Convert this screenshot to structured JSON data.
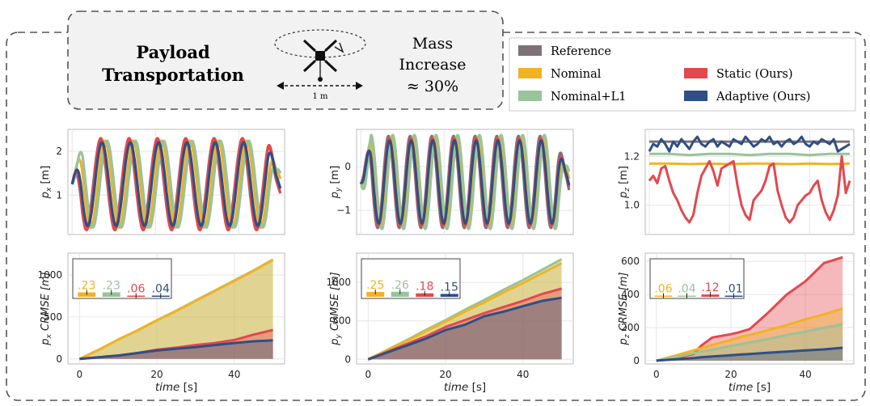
{
  "header": {
    "task_line1": "Payload",
    "task_line2": "Transportation",
    "distance_label": "1 m",
    "mass_line1": "Mass",
    "mass_line2": "Increase",
    "mass_line3": "≈ 30%"
  },
  "legend": [
    {
      "name": "Reference",
      "color": "#7d7177"
    },
    {
      "name": "Nominal",
      "color": "#f0b323"
    },
    {
      "name": "Nominal+L1",
      "color": "#99c39a"
    },
    {
      "name": "Static (Ours)",
      "color": "#e5474f"
    },
    {
      "name": "Adaptive (Ours)",
      "color": "#2f4f86"
    }
  ],
  "colors": {
    "reference": "#7d7177",
    "nominal": "#f0b323",
    "nominal_l1": "#99c39a",
    "static": "#e5474f",
    "adaptive": "#2f4f86"
  },
  "chart_data": [
    {
      "id": "px",
      "type": "line",
      "ylabel_main": "p",
      "ylabel_sub": "x",
      "ylabel_unit": "[m]",
      "xlim": [
        -1,
        51
      ],
      "ylim": [
        0.1,
        2.5
      ],
      "yticks": [
        1,
        2
      ],
      "ytick_labels": [
        "1",
        "2"
      ],
      "signal": {
        "kind": "sine",
        "center": 1.25,
        "amplitude": 0.97,
        "period": 6.8,
        "phase": 1.6,
        "t_end": 50,
        "series": [
          {
            "name": "Reference",
            "key": "reference",
            "amp_scale": 1.0,
            "lag": 0.0
          },
          {
            "name": "Nominal",
            "key": "nominal",
            "amp_scale": 1.02,
            "lag": 1.1
          },
          {
            "name": "Nominal+L1",
            "key": "nominal_l1",
            "amp_scale": 1.02,
            "lag": 1.6
          },
          {
            "name": "Static (Ours)",
            "key": "static",
            "amp_scale": 1.08,
            "lag": 0.1
          },
          {
            "name": "Adaptive (Ours)",
            "key": "adaptive",
            "amp_scale": 0.98,
            "lag": 0.4
          }
        ]
      }
    },
    {
      "id": "py",
      "type": "line",
      "ylabel_main": "p",
      "ylabel_sub": "y",
      "ylabel_unit": "[m]",
      "xlim": [
        -1,
        51
      ],
      "ylim": [
        -1.55,
        0.85
      ],
      "yticks": [
        -1,
        0
      ],
      "ytick_labels": [
        "−1",
        "0"
      ],
      "signal": {
        "kind": "sine",
        "center": -0.35,
        "amplitude": 1.05,
        "period": 5.2,
        "phase": -0.2,
        "t_end": 50,
        "series": [
          {
            "name": "Reference",
            "key": "reference",
            "amp_scale": 1.0,
            "lag": 0.0
          },
          {
            "name": "Nominal",
            "key": "nominal",
            "amp_scale": 0.98,
            "lag": 0.6
          },
          {
            "name": "Nominal+L1",
            "key": "nominal_l1",
            "amp_scale": 1.02,
            "lag": 1.0
          },
          {
            "name": "Static (Ours)",
            "key": "static",
            "amp_scale": 0.95,
            "lag": 0.15
          },
          {
            "name": "Adaptive (Ours)",
            "key": "adaptive",
            "amp_scale": 0.9,
            "lag": 0.25
          }
        ]
      }
    },
    {
      "id": "pz",
      "type": "line",
      "ylabel_main": "p",
      "ylabel_sub": "z",
      "ylabel_unit": "[m]",
      "xlim": [
        -1,
        51
      ],
      "ylim": [
        0.88,
        1.31
      ],
      "yticks": [
        1.0,
        1.2
      ],
      "ytick_labels": [
        "1.0",
        "1.2"
      ],
      "series": [
        {
          "name": "Reference",
          "key": "reference",
          "x": [
            0,
            50
          ],
          "y": [
            1.26,
            1.26
          ]
        },
        {
          "name": "Nominal",
          "key": "nominal",
          "x": [
            0,
            5,
            10,
            15,
            20,
            25,
            30,
            35,
            40,
            45,
            50
          ],
          "y": [
            1.17,
            1.17,
            1.168,
            1.17,
            1.168,
            1.17,
            1.17,
            1.168,
            1.17,
            1.168,
            1.17
          ]
        },
        {
          "name": "Nominal+L1",
          "key": "nominal_l1",
          "x": [
            0,
            5,
            10,
            15,
            20,
            25,
            30,
            35,
            40,
            45,
            50
          ],
          "y": [
            1.21,
            1.21,
            1.205,
            1.21,
            1.21,
            1.205,
            1.21,
            1.21,
            1.205,
            1.21,
            1.21
          ]
        },
        {
          "name": "Static (Ours)",
          "key": "static",
          "x": [
            0,
            1,
            2,
            3,
            4,
            5,
            6,
            7,
            8,
            9,
            10,
            11,
            12,
            13,
            14,
            15,
            16,
            17,
            18,
            19,
            20,
            21,
            22,
            23,
            24,
            25,
            26,
            27,
            28,
            29,
            30,
            31,
            32,
            33,
            34,
            35,
            36,
            37,
            38,
            39,
            40,
            41,
            42,
            43,
            44,
            45,
            46,
            47,
            48,
            49,
            50
          ],
          "y": [
            1.1,
            1.12,
            1.09,
            1.15,
            1.16,
            1.1,
            1.05,
            1.02,
            0.98,
            0.95,
            0.93,
            0.96,
            1.05,
            1.12,
            1.15,
            1.18,
            1.14,
            1.08,
            1.15,
            1.16,
            1.17,
            1.18,
            1.08,
            1.0,
            0.96,
            0.94,
            1.02,
            1.04,
            1.06,
            1.1,
            1.16,
            1.17,
            1.06,
            1.0,
            0.95,
            0.93,
            0.95,
            1.0,
            1.02,
            1.04,
            1.05,
            1.08,
            1.1,
            1.02,
            0.97,
            0.94,
            0.98,
            1.04,
            1.2,
            1.05,
            1.1
          ]
        },
        {
          "name": "Adaptive (Ours)",
          "key": "adaptive",
          "x": [
            0,
            1,
            2,
            3,
            4,
            5,
            6,
            7,
            8,
            9,
            10,
            11,
            12,
            13,
            14,
            15,
            16,
            17,
            18,
            19,
            20,
            21,
            22,
            23,
            24,
            25,
            26,
            27,
            28,
            29,
            30,
            31,
            32,
            33,
            34,
            35,
            36,
            37,
            38,
            39,
            40,
            41,
            42,
            43,
            44,
            45,
            46,
            47,
            48,
            49,
            50
          ],
          "y": [
            1.22,
            1.25,
            1.24,
            1.27,
            1.25,
            1.22,
            1.26,
            1.24,
            1.27,
            1.25,
            1.23,
            1.26,
            1.28,
            1.25,
            1.24,
            1.26,
            1.27,
            1.24,
            1.26,
            1.25,
            1.24,
            1.27,
            1.26,
            1.25,
            1.28,
            1.26,
            1.24,
            1.25,
            1.27,
            1.26,
            1.28,
            1.25,
            1.26,
            1.24,
            1.26,
            1.27,
            1.25,
            1.26,
            1.28,
            1.25,
            1.24,
            1.26,
            1.25,
            1.27,
            1.26,
            1.25,
            1.27,
            1.22,
            1.23,
            1.24,
            1.25
          ]
        }
      ]
    },
    {
      "id": "px_crmse",
      "type": "area",
      "ylabel_main": "p",
      "ylabel_sub": "x",
      "ylabel_unit": "CRMSE [m]",
      "xlabel": "time",
      "xlabel_unit": "[s]",
      "xlim": [
        -3,
        53
      ],
      "ylim": [
        -60,
        1260
      ],
      "xticks": [
        0,
        20,
        40
      ],
      "xtick_labels": [
        "0",
        "20",
        "40"
      ],
      "yticks": [
        0,
        500,
        1000
      ],
      "ytick_labels": [
        "0",
        "500",
        "1000"
      ],
      "x": [
        0,
        5,
        10,
        15,
        20,
        25,
        30,
        35,
        40,
        45,
        50
      ],
      "series": [
        {
          "name": "Reference",
          "key": "reference",
          "y": [
            0,
            0,
            0,
            0,
            0,
            0,
            0,
            0,
            0,
            0,
            0
          ]
        },
        {
          "name": "Nominal",
          "key": "nominal",
          "y": [
            0,
            110,
            230,
            340,
            460,
            570,
            690,
            810,
            930,
            1050,
            1180
          ]
        },
        {
          "name": "Nominal+L1",
          "key": "nominal_l1",
          "y": [
            0,
            110,
            230,
            340,
            460,
            575,
            695,
            815,
            935,
            1055,
            1185
          ]
        },
        {
          "name": "Static (Ours)",
          "key": "static",
          "y": [
            0,
            20,
            40,
            70,
            110,
            135,
            165,
            190,
            225,
            290,
            345
          ]
        },
        {
          "name": "Adaptive (Ours)",
          "key": "adaptive",
          "y": [
            0,
            20,
            40,
            70,
            100,
            120,
            140,
            165,
            190,
            210,
            220
          ]
        }
      ],
      "inset": {
        "values": [
          ".23",
          ".23",
          ".06",
          ".04"
        ],
        "keys": [
          "nominal",
          "nominal_l1",
          "static",
          "adaptive"
        ],
        "heights": [
          0.23,
          0.23,
          0.06,
          0.04
        ]
      }
    },
    {
      "id": "py_crmse",
      "type": "area",
      "ylabel_main": "p",
      "ylabel_sub": "y",
      "ylabel_unit": "CRMSE [m]",
      "xlabel": "time",
      "xlabel_unit": "[s]",
      "xlim": [
        -3,
        53
      ],
      "ylim": [
        -60,
        1380
      ],
      "xticks": [
        0,
        20,
        40
      ],
      "xtick_labels": [
        "0",
        "20",
        "40"
      ],
      "yticks": [
        0,
        500,
        1000
      ],
      "ytick_labels": [
        "0",
        "500",
        "1000"
      ],
      "x": [
        0,
        5,
        10,
        15,
        20,
        25,
        30,
        35,
        40,
        45,
        50
      ],
      "series": [
        {
          "name": "Reference",
          "key": "reference",
          "y": [
            0,
            0,
            0,
            0,
            0,
            0,
            0,
            0,
            0,
            0,
            0
          ]
        },
        {
          "name": "Nominal",
          "key": "nominal",
          "y": [
            0,
            120,
            240,
            370,
            490,
            620,
            740,
            870,
            990,
            1120,
            1250
          ]
        },
        {
          "name": "Nominal+L1",
          "key": "nominal_l1",
          "y": [
            0,
            125,
            250,
            385,
            510,
            645,
            770,
            905,
            1030,
            1165,
            1300
          ]
        },
        {
          "name": "Static (Ours)",
          "key": "static",
          "y": [
            0,
            100,
            200,
            300,
            420,
            510,
            600,
            680,
            760,
            850,
            920
          ]
        },
        {
          "name": "Adaptive (Ours)",
          "key": "adaptive",
          "y": [
            0,
            90,
            180,
            270,
            380,
            450,
            560,
            620,
            690,
            760,
            800
          ]
        }
      ],
      "inset": {
        "values": [
          ".25",
          ".26",
          ".18",
          ".15"
        ],
        "keys": [
          "nominal",
          "nominal_l1",
          "static",
          "adaptive"
        ],
        "heights": [
          0.25,
          0.26,
          0.18,
          0.15
        ]
      }
    },
    {
      "id": "pz_crmse",
      "type": "area",
      "ylabel_main": "p",
      "ylabel_sub": "z",
      "ylabel_unit": "CRMSE [m]",
      "xlabel": "time",
      "xlabel_unit": "[s]",
      "xlim": [
        -3,
        53
      ],
      "ylim": [
        -20,
        650
      ],
      "xticks": [
        0,
        20,
        40
      ],
      "xtick_labels": [
        "0",
        "20",
        "40"
      ],
      "yticks": [
        0,
        200,
        400,
        600
      ],
      "ytick_labels": [
        "0",
        "200",
        "400",
        "600"
      ],
      "x": [
        0,
        5,
        10,
        12,
        15,
        20,
        22,
        25,
        30,
        35,
        40,
        45,
        50
      ],
      "series": [
        {
          "name": "Reference",
          "key": "reference",
          "y": [
            0,
            0,
            0,
            0,
            0,
            0,
            0,
            0,
            0,
            0,
            0,
            0,
            0
          ]
        },
        {
          "name": "Nominal",
          "key": "nominal",
          "y": [
            0,
            30,
            62,
            75,
            95,
            125,
            140,
            155,
            185,
            215,
            250,
            280,
            315
          ]
        },
        {
          "name": "Nominal+L1",
          "key": "nominal_l1",
          "y": [
            0,
            20,
            45,
            55,
            66,
            88,
            97,
            110,
            130,
            155,
            175,
            198,
            220
          ]
        },
        {
          "name": "Static (Ours)",
          "key": "static",
          "y": [
            0,
            15,
            40,
            90,
            140,
            160,
            170,
            190,
            290,
            400,
            480,
            590,
            625
          ]
        },
        {
          "name": "Adaptive (Ours)",
          "key": "adaptive",
          "y": [
            0,
            8,
            15,
            20,
            25,
            33,
            36,
            40,
            48,
            55,
            62,
            68,
            78
          ]
        }
      ],
      "inset": {
        "values": [
          ".06",
          ".04",
          ".12",
          ".01"
        ],
        "keys": [
          "nominal",
          "nominal_l1",
          "static",
          "adaptive"
        ],
        "heights": [
          0.06,
          0.04,
          0.12,
          0.01
        ]
      }
    }
  ]
}
